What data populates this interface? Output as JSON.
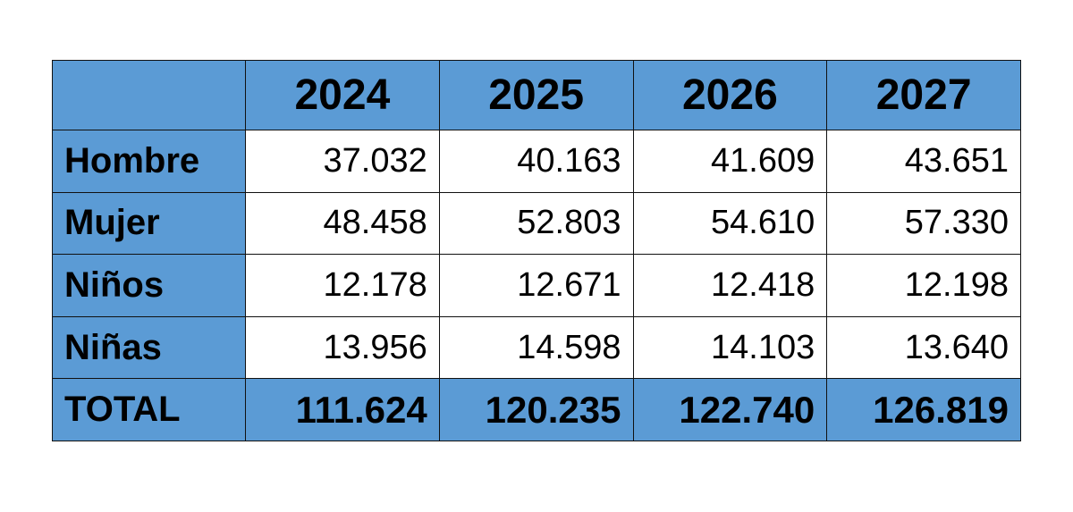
{
  "chart_data": {
    "type": "table",
    "columns": [
      "2024",
      "2025",
      "2026",
      "2027"
    ],
    "rows": [
      {
        "label": "Hombre",
        "values": [
          "37.032",
          "40.163",
          "41.609",
          "43.651"
        ]
      },
      {
        "label": "Mujer",
        "values": [
          "48.458",
          "52.803",
          "54.610",
          "57.330"
        ]
      },
      {
        "label": "Niños",
        "values": [
          "12.178",
          "12.671",
          "12.418",
          "12.198"
        ]
      },
      {
        "label": "Niñas",
        "values": [
          "13.956",
          "14.598",
          "14.103",
          "13.640"
        ]
      }
    ],
    "total": {
      "label": "TOTAL",
      "values": [
        "111.624",
        "120.235",
        "122.740",
        "126.819"
      ]
    },
    "colors": {
      "header_fill": "#5b9bd5",
      "cell_fill": "#ffffff",
      "border": "#111111"
    }
  }
}
